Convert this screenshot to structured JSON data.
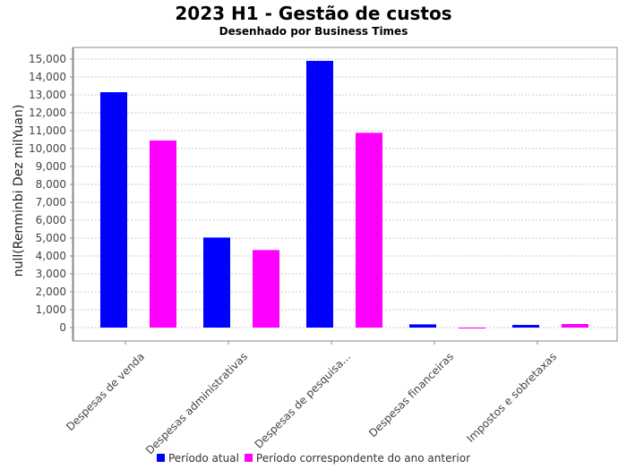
{
  "chart_data": {
    "type": "bar",
    "title": "2023 H1 - Gestão de custos",
    "subtitle": "Desenhado por Business Times",
    "xlabel": "",
    "ylabel": "null(Renminbi Dez milYuan)",
    "ylim": [
      -800,
      15500
    ],
    "yticks": [
      0,
      1000,
      2000,
      3000,
      4000,
      5000,
      6000,
      7000,
      8000,
      9000,
      10000,
      11000,
      12000,
      13000,
      14000,
      15000
    ],
    "ytick_labels": [
      "0",
      "1,000",
      "2,000",
      "3,000",
      "4,000",
      "5,000",
      "6,000",
      "7,000",
      "8,000",
      "9,000",
      "10,000",
      "11,000",
      "12,000",
      "13,000",
      "14,000",
      "15,000"
    ],
    "grid": true,
    "legend_position": "bottom",
    "categories": [
      "Despesas de venda",
      "Despesas administrativas",
      "Despesas de pesquisa...",
      "Despesas financeiras",
      "Impostos e sobretaxas"
    ],
    "series": [
      {
        "name": "Período atual",
        "color": "#0000ff",
        "values": [
          13150,
          5030,
          14900,
          180,
          150
        ]
      },
      {
        "name": "Período correspondente do ano anterior",
        "color": "#ff00ff",
        "values": [
          10450,
          4330,
          10880,
          -20,
          200
        ]
      }
    ]
  }
}
